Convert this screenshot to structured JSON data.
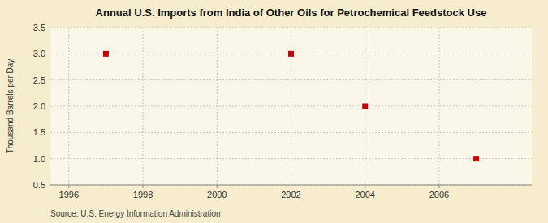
{
  "chart_data": {
    "type": "scatter",
    "title": "Annual U.S. Imports from India of Other Oils for Petrochemical Feedstock Use",
    "ylabel": "Thousand Barrels per Day",
    "annotations": [
      "Source: U.S. Energy Information Administration"
    ],
    "x": [
      1997,
      2002,
      2004,
      2007
    ],
    "values": [
      3.0,
      3.0,
      2.0,
      1.0
    ],
    "color": "#CC0000",
    "marker": "square",
    "xlim": [
      1995.5,
      2008.5
    ],
    "ylim": [
      0.5,
      3.5
    ],
    "xticks": [
      1996,
      1998,
      2000,
      2002,
      2004,
      2006
    ],
    "yticks": [
      0.5,
      {
        "value": 1.0,
        "label": "1.0"
      },
      1.5,
      {
        "value": 2.0,
        "label": "2.0"
      },
      2.5,
      {
        "value": 3.0,
        "label": "3.0"
      },
      3.5
    ],
    "grid": true
  }
}
